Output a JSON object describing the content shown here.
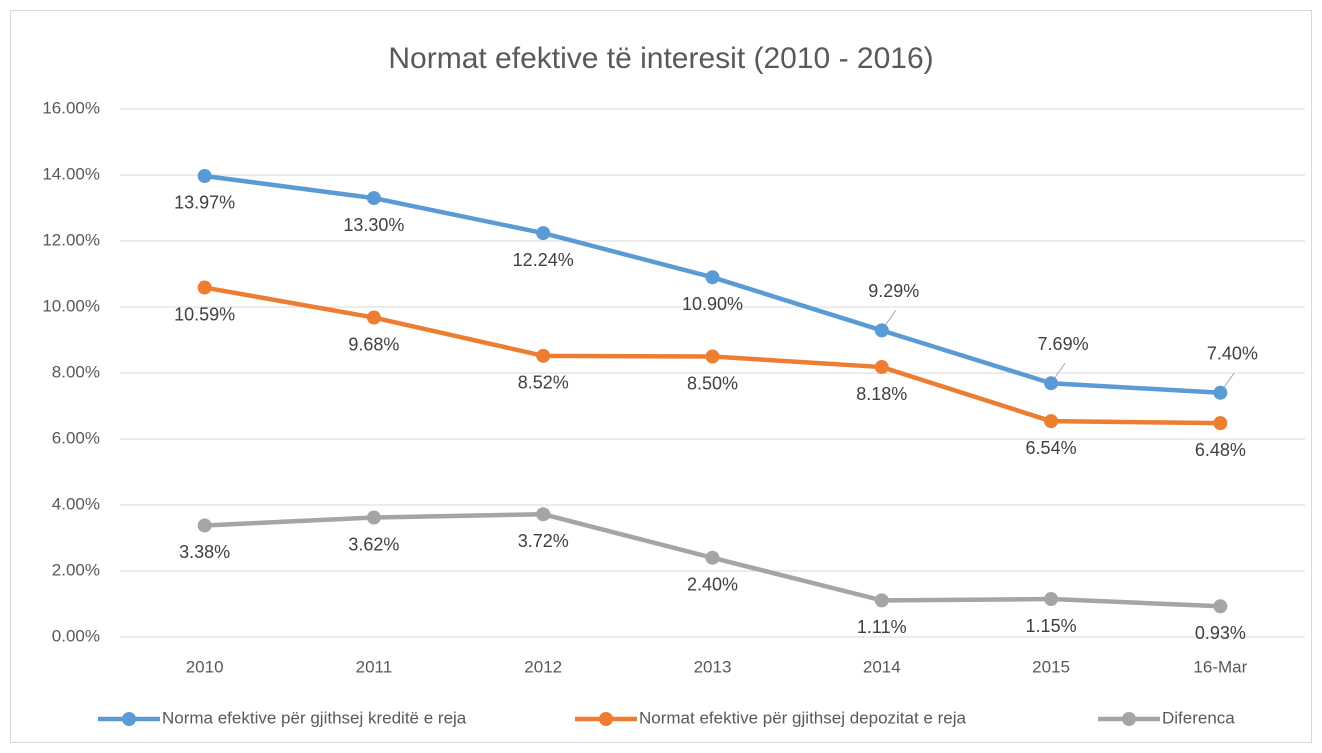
{
  "chart_data": {
    "type": "line",
    "title": "Normat efektive të interesit (2010 - 2016)",
    "categories": [
      "2010",
      "2011",
      "2012",
      "2013",
      "2014",
      "2015",
      "16-Mar"
    ],
    "series": [
      {
        "name": "Norma efektive për gjithsej kreditë e reja",
        "color": "#5b9bd5",
        "values": [
          13.97,
          13.3,
          12.24,
          10.9,
          9.29,
          7.69,
          7.4
        ],
        "value_labels": [
          "13.97%",
          "13.30%",
          "12.24%",
          "10.90%",
          "9.29%",
          "7.69%",
          "7.40%"
        ]
      },
      {
        "name": "Normat efektive për gjithsej depozitat e reja",
        "color": "#ed7d31",
        "values": [
          10.59,
          9.68,
          8.52,
          8.5,
          8.18,
          6.54,
          6.48
        ],
        "value_labels": [
          "10.59%",
          "9.68%",
          "8.52%",
          "8.50%",
          "8.18%",
          "6.54%",
          "6.48%"
        ]
      },
      {
        "name": "Diferenca",
        "color": "#a5a5a5",
        "values": [
          3.38,
          3.62,
          3.72,
          2.4,
          1.11,
          1.15,
          0.93
        ],
        "value_labels": [
          "3.38%",
          "3.62%",
          "3.72%",
          "2.40%",
          "1.11%",
          "1.15%",
          "0.93%"
        ]
      }
    ],
    "ylim": [
      0,
      16
    ],
    "yticks": [
      {
        "value": 0,
        "label": "0.00%"
      },
      {
        "value": 2,
        "label": "2.00%"
      },
      {
        "value": 4,
        "label": "4.00%"
      },
      {
        "value": 6,
        "label": "6.00%"
      },
      {
        "value": 8,
        "label": "8.00%"
      },
      {
        "value": 10,
        "label": "10.00%"
      },
      {
        "value": 12,
        "label": "12.00%"
      },
      {
        "value": 14,
        "label": "14.00%"
      },
      {
        "value": 16,
        "label": "16.00%"
      }
    ],
    "grid": true,
    "legend": "bottom"
  }
}
